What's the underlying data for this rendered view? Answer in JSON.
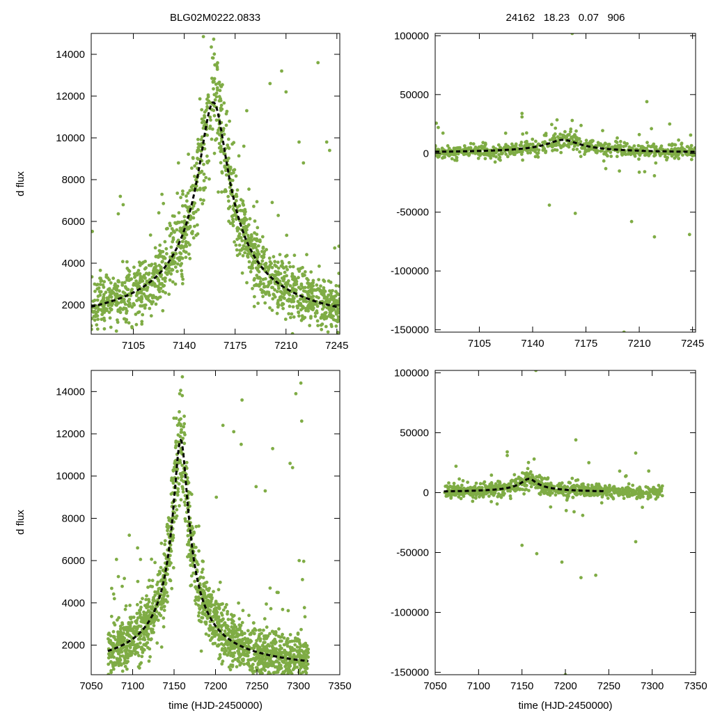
{
  "header": {
    "left_title": "BLG02M0222.0833",
    "right_title": "24162   18.23   0.07   906"
  },
  "colors": {
    "points": "#7fac45",
    "model": "#000000",
    "axes": "#000000"
  },
  "chart_data": [
    {
      "id": "top-left",
      "type": "scatter",
      "title": "BLG02M0222.0833",
      "xlabel": "",
      "ylabel": "d flux",
      "xlim": [
        7076,
        7247
      ],
      "ylim": [
        600,
        15000
      ],
      "xticks": [
        7105,
        7140,
        7175,
        7210,
        7245
      ],
      "yticks": [
        2000,
        4000,
        6000,
        8000,
        10000,
        12000,
        14000
      ],
      "series": [
        {
          "name": "data",
          "kind": "points",
          "seed": 11,
          "n": 1500,
          "x_range": [
            7076,
            7247
          ],
          "t0": 7160,
          "tE": 18,
          "base": 600,
          "amp": 11100,
          "noise_frac": 0.08,
          "noise_abs": 500,
          "outliers": [
            [
              7124,
              3800
            ],
            [
              7136,
              8800
            ],
            [
              7183,
              11300
            ],
            [
              7199,
              12600
            ],
            [
              7207,
              13200
            ],
            [
              7210,
              12200
            ],
            [
              7219,
              9800
            ],
            [
              7222,
              8800
            ],
            [
              7232,
              13600
            ],
            [
              7238,
              9800
            ],
            [
              7240,
              9400
            ],
            [
              7096,
              7200
            ],
            [
              7098,
              6800
            ],
            [
              7181,
              9600
            ]
          ]
        },
        {
          "name": "model",
          "kind": "line",
          "t0": 7160,
          "tE": 18,
          "base": 600,
          "amp": 11100,
          "x_range": [
            7076,
            7247
          ]
        }
      ]
    },
    {
      "id": "top-right",
      "type": "scatter",
      "title": "24162   18.23   0.07   906",
      "xlabel": "",
      "ylabel": "",
      "xlim": [
        7076,
        7247
      ],
      "ylim": [
        -152000,
        102000
      ],
      "xticks": [
        7105,
        7140,
        7175,
        7210,
        7245
      ],
      "yticks": [
        -150000,
        -100000,
        -50000,
        0,
        50000,
        100000
      ],
      "series": [
        {
          "name": "data",
          "kind": "points",
          "seed": 23,
          "n": 750,
          "x_range": [
            7076,
            7247
          ],
          "t0": 7160,
          "tE": 18,
          "base": 0,
          "amp": 11500,
          "noise_frac": 0.15,
          "noise_abs": 2500,
          "outliers": [
            [
              7166,
              102000
            ],
            [
              7151,
              -44000
            ],
            [
              7168,
              -51000
            ],
            [
              7205,
              -58000
            ],
            [
              7220,
              -71000
            ],
            [
              7243,
              -69000
            ],
            [
              7200,
              -152000
            ],
            [
              7133,
              34000
            ],
            [
              7133,
              31000
            ],
            [
              7166,
              28000
            ],
            [
              7215,
              44000
            ],
            [
              7230,
              25000
            ],
            [
              7078,
              22000
            ],
            [
              7210,
              16000
            ],
            [
              7218,
              21000
            ],
            [
              7197,
              -15000
            ],
            [
              7210,
              -16000
            ],
            [
              7220,
              -19000
            ],
            [
              7188,
              -13000
            ],
            [
              7150,
              6000
            ]
          ]
        },
        {
          "name": "model",
          "kind": "line",
          "t0": 7160,
          "tE": 18,
          "base": 0,
          "amp": 11500,
          "x_range": [
            7076,
            7247
          ]
        }
      ]
    },
    {
      "id": "bottom-left",
      "type": "scatter",
      "title": "",
      "xlabel": "time (HJD-2450000)",
      "ylabel": "d flux",
      "xlim": [
        7050,
        7350
      ],
      "ylim": [
        600,
        15000
      ],
      "xticks": [
        7050,
        7100,
        7150,
        7200,
        7250,
        7300,
        7350
      ],
      "yticks": [
        2000,
        4000,
        6000,
        8000,
        10000,
        12000,
        14000
      ],
      "series": [
        {
          "name": "data",
          "kind": "points",
          "seed": 37,
          "n": 1700,
          "x_range": [
            7070,
            7312
          ],
          "t0": 7158,
          "tE": 16,
          "base": 600,
          "amp": 11100,
          "noise_frac": 0.08,
          "noise_abs": 500,
          "outliers": [
            [
              7232,
              13600
            ],
            [
              7222,
              12100
            ],
            [
              7209,
              12400
            ],
            [
              7249,
              9500
            ],
            [
              7260,
              9300
            ],
            [
              7297,
              13900
            ],
            [
              7303,
              14400
            ],
            [
              7304,
              12600
            ],
            [
              7290,
              10600
            ],
            [
              7293,
              10400
            ],
            [
              7301,
              6000
            ],
            [
              7305,
              5100
            ],
            [
              7269,
              11300
            ],
            [
              7231,
              11500
            ],
            [
              7201,
              9000
            ],
            [
              7078,
              4200
            ],
            [
              7096,
              7200
            ],
            [
              7106,
              6600
            ]
          ]
        },
        {
          "name": "model",
          "kind": "line",
          "t0": 7158,
          "tE": 16,
          "base": 600,
          "amp": 11100,
          "x_range": [
            7070,
            7312
          ]
        }
      ]
    },
    {
      "id": "bottom-right",
      "type": "scatter",
      "title": "",
      "xlabel": "time (HJD-2450000)",
      "ylabel": "",
      "xlim": [
        7050,
        7350
      ],
      "ylim": [
        -152000,
        102000
      ],
      "xticks": [
        7050,
        7100,
        7150,
        7200,
        7250,
        7300,
        7350
      ],
      "yticks": [
        -150000,
        -100000,
        -50000,
        0,
        50000,
        100000
      ],
      "series": [
        {
          "name": "data",
          "kind": "points",
          "seed": 53,
          "n": 850,
          "x_range": [
            7060,
            7312
          ],
          "t0": 7158,
          "tE": 16,
          "base": 0,
          "amp": 11500,
          "noise_frac": 0.15,
          "noise_abs": 2500,
          "outliers": [
            [
              7166,
              102000
            ],
            [
              7150,
              -44000
            ],
            [
              7167,
              -51000
            ],
            [
              7196,
              -58000
            ],
            [
              7218,
              -71000
            ],
            [
              7235,
              -69000
            ],
            [
              7200,
              -152000
            ],
            [
              7281,
              -41000
            ],
            [
              7281,
              33000
            ],
            [
              7212,
              44000
            ],
            [
              7227,
              25000
            ],
            [
              7133,
              34000
            ],
            [
              7133,
              31000
            ],
            [
              7164,
              28000
            ],
            [
              7074,
              22000
            ],
            [
              7201,
              -15000
            ],
            [
              7210,
              -16000
            ],
            [
              7220,
              -19000
            ],
            [
              7183,
              -12000
            ],
            [
              7296,
              18000
            ],
            [
              7270,
              14000
            ]
          ]
        },
        {
          "name": "model",
          "kind": "line",
          "t0": 7158,
          "tE": 16,
          "base": 0,
          "amp": 11500,
          "x_range": [
            7060,
            7245
          ]
        }
      ]
    }
  ]
}
